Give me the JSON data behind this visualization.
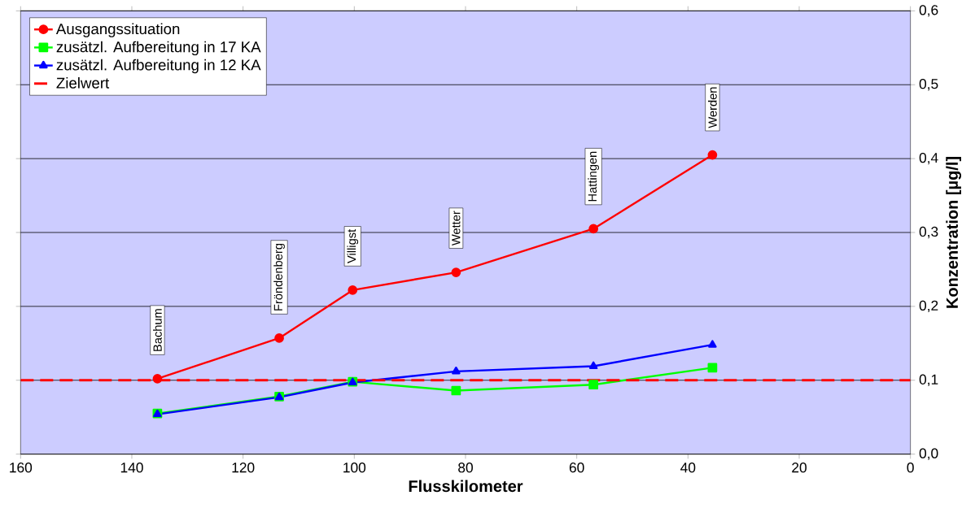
{
  "chart_data": {
    "type": "line",
    "xlabel": "Flusskilometer",
    "ylabel": "Konzentration [µg/l]",
    "xlim": [
      160,
      0
    ],
    "ylim": [
      0,
      0.6
    ],
    "xticks": [
      160,
      140,
      120,
      100,
      80,
      60,
      40,
      20,
      0
    ],
    "yticks": [
      {
        "value": 0,
        "label": "0,0"
      },
      {
        "value": 0.1,
        "label": "0,1"
      },
      {
        "value": 0.2,
        "label": "0,2"
      },
      {
        "value": 0.3,
        "label": "0,3"
      },
      {
        "value": 0.4,
        "label": "0,4"
      },
      {
        "value": 0.5,
        "label": "0,5"
      },
      {
        "value": 0.6,
        "label": "0,6"
      }
    ],
    "grid": "y",
    "legend": "top left",
    "line_style": "solid",
    "x": [
      135.4,
      113.5,
      100.3,
      81.7,
      57,
      35.6
    ],
    "series": [
      {
        "name": "Ausgangssituation",
        "color": "#ff0000",
        "marker": "circle",
        "values": [
          0.102,
          0.157,
          0.222,
          0.246,
          0.305,
          0.405
        ]
      },
      {
        "name": "zusätzl. Aufbereitung in 17 KA",
        "color": "#00ff00",
        "marker": "square",
        "values": [
          0.055,
          0.078,
          0.098,
          0.086,
          0.094,
          0.117
        ]
      },
      {
        "name": "zusätzl. Aufbereitung in 12 KA",
        "color": "#0000ff",
        "marker": "triangle",
        "values": [
          0.054,
          0.077,
          0.097,
          0.112,
          0.119,
          0.148
        ]
      }
    ],
    "ref_lines": [
      {
        "axis": "y",
        "value": 0.1,
        "label": "Zielwert",
        "color": "#ff0000",
        "line_style": "dashed"
      }
    ],
    "annotations": [
      "Bachum",
      "Fröndenberg",
      "Villigst",
      "Wetter",
      "Hattingen",
      "Werden"
    ]
  }
}
